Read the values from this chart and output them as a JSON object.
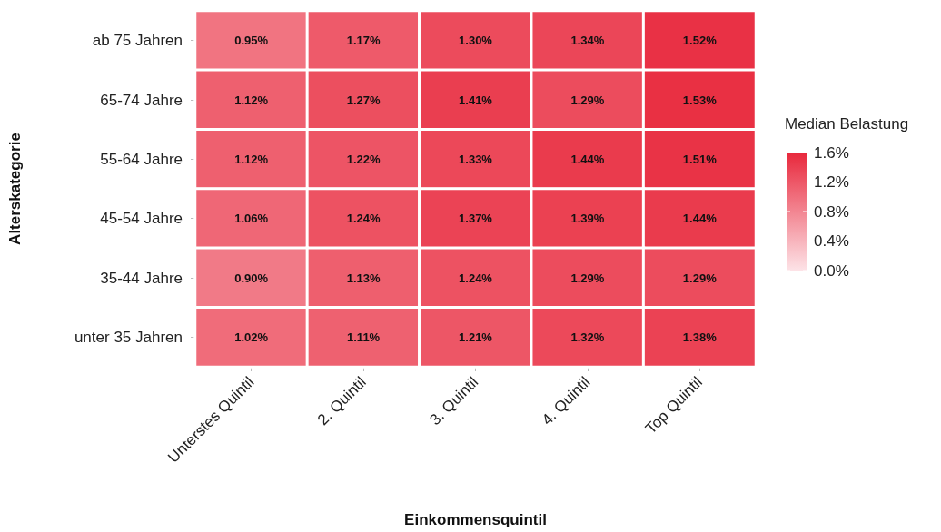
{
  "chart_data": {
    "type": "heatmap",
    "xlabel": "Einkommensquintil",
    "ylabel": "Alterskategorie",
    "legend_title": "Median Belastung",
    "categories": [
      "Unterstes Quintil",
      "2. Quintil",
      "3. Quintil",
      "4. Quintil",
      "Top Quintil"
    ],
    "y_categories": [
      "ab 75 Jahren",
      "65-74 Jahre",
      "55-64 Jahre",
      "45-54 Jahre",
      "35-44 Jahre",
      "unter 35 Jahren"
    ],
    "cells": [
      [
        0.95,
        1.17,
        1.3,
        1.34,
        1.52
      ],
      [
        1.12,
        1.27,
        1.41,
        1.29,
        1.53
      ],
      [
        1.12,
        1.22,
        1.33,
        1.44,
        1.51
      ],
      [
        1.06,
        1.24,
        1.37,
        1.39,
        1.44
      ],
      [
        0.9,
        1.13,
        1.24,
        1.29,
        1.29
      ],
      [
        1.02,
        1.11,
        1.21,
        1.32,
        1.38
      ]
    ],
    "cell_labels": [
      [
        "0.95%",
        "1.17%",
        "1.30%",
        "1.34%",
        "1.52%"
      ],
      [
        "1.12%",
        "1.27%",
        "1.41%",
        "1.29%",
        "1.53%"
      ],
      [
        "1.12%",
        "1.22%",
        "1.33%",
        "1.44%",
        "1.51%"
      ],
      [
        "1.06%",
        "1.24%",
        "1.37%",
        "1.39%",
        "1.44%"
      ],
      [
        "0.90%",
        "1.13%",
        "1.24%",
        "1.29%",
        "1.29%"
      ],
      [
        "1.02%",
        "1.11%",
        "1.21%",
        "1.32%",
        "1.38%"
      ]
    ],
    "clim": [
      0,
      1.6
    ],
    "cticks": [
      {
        "value": 0,
        "label": "0.0%"
      },
      {
        "value": 0.4,
        "label": "0.4%"
      },
      {
        "value": 0.8,
        "label": "0.8%"
      },
      {
        "value": 1.2,
        "label": "1.2%"
      },
      {
        "value": 1.6,
        "label": "1.6%"
      }
    ]
  }
}
